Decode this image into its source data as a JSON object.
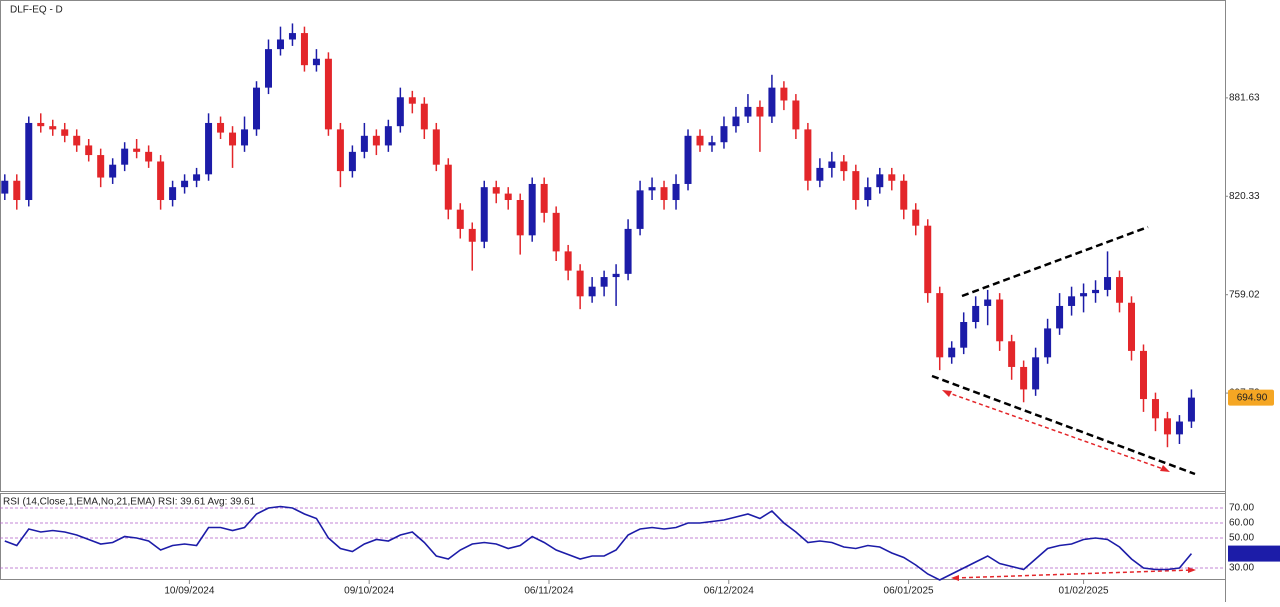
{
  "chart_data": [
    {
      "type": "candlestick",
      "title": "DLF-EQ - D",
      "up_color": "#1c1ca8",
      "down_color": "#e3262a",
      "ylim": [
        636.1,
        942.6
      ],
      "yticks": [
        881.63,
        820.33,
        759.02,
        697.72
      ],
      "xlim": [
        -0.4,
        101.8
      ],
      "xticks": [
        {
          "value": 15.4,
          "label": "10/09/2024"
        },
        {
          "value": 30.4,
          "label": "09/10/2024"
        },
        {
          "value": 45.4,
          "label": "06/11/2024"
        },
        {
          "value": 60.4,
          "label": "06/12/2024"
        },
        {
          "value": 75.4,
          "label": "06/01/2025"
        },
        {
          "value": 90,
          "label": "01/02/2025"
        }
      ],
      "last_price": {
        "value": 694.9,
        "label": "694.90"
      },
      "candles": [
        [
          822,
          834,
          818,
          830
        ],
        [
          830,
          834,
          812,
          818
        ],
        [
          818,
          870,
          814,
          866
        ],
        [
          866,
          872,
          860,
          864
        ],
        [
          864,
          868,
          858,
          862
        ],
        [
          862,
          866,
          854,
          858
        ],
        [
          858,
          862,
          848,
          852
        ],
        [
          852,
          856,
          842,
          846
        ],
        [
          846,
          850,
          826,
          832
        ],
        [
          832,
          844,
          828,
          840
        ],
        [
          840,
          854,
          836,
          850
        ],
        [
          850,
          856,
          844,
          848
        ],
        [
          848,
          852,
          838,
          842
        ],
        [
          842,
          846,
          812,
          818
        ],
        [
          818,
          830,
          814,
          826
        ],
        [
          826,
          834,
          822,
          830
        ],
        [
          830,
          838,
          826,
          834
        ],
        [
          834,
          872,
          830,
          866
        ],
        [
          866,
          870,
          856,
          860
        ],
        [
          860,
          864,
          838,
          852
        ],
        [
          852,
          870,
          848,
          862
        ],
        [
          862,
          892,
          858,
          888
        ],
        [
          888,
          918,
          884,
          912
        ],
        [
          912,
          926,
          908,
          918
        ],
        [
          918,
          928,
          914,
          922
        ],
        [
          922,
          926,
          898,
          902
        ],
        [
          902,
          912,
          898,
          906
        ],
        [
          906,
          910,
          858,
          862
        ],
        [
          862,
          866,
          826,
          836
        ],
        [
          836,
          852,
          832,
          848
        ],
        [
          848,
          866,
          844,
          858
        ],
        [
          858,
          862,
          846,
          852
        ],
        [
          852,
          868,
          848,
          864
        ],
        [
          864,
          888,
          860,
          882
        ],
        [
          882,
          886,
          872,
          878
        ],
        [
          878,
          882,
          856,
          862
        ],
        [
          862,
          866,
          836,
          840
        ],
        [
          840,
          844,
          806,
          812
        ],
        [
          812,
          816,
          794,
          800
        ],
        [
          800,
          804,
          774,
          792
        ],
        [
          792,
          830,
          788,
          826
        ],
        [
          826,
          830,
          816,
          822
        ],
        [
          822,
          826,
          812,
          818
        ],
        [
          818,
          822,
          784,
          796
        ],
        [
          796,
          832,
          792,
          828
        ],
        [
          828,
          832,
          804,
          810
        ],
        [
          810,
          814,
          780,
          786
        ],
        [
          786,
          790,
          768,
          774
        ],
        [
          774,
          778,
          750,
          758
        ],
        [
          758,
          770,
          754,
          764
        ],
        [
          764,
          774,
          758,
          770
        ],
        [
          770,
          778,
          752,
          772
        ],
        [
          772,
          806,
          768,
          800
        ],
        [
          800,
          830,
          796,
          824
        ],
        [
          824,
          832,
          818,
          826
        ],
        [
          826,
          830,
          812,
          818
        ],
        [
          818,
          834,
          812,
          828
        ],
        [
          828,
          862,
          824,
          858
        ],
        [
          858,
          862,
          848,
          852
        ],
        [
          852,
          858,
          848,
          854
        ],
        [
          854,
          870,
          850,
          864
        ],
        [
          864,
          876,
          860,
          870
        ],
        [
          870,
          884,
          866,
          876
        ],
        [
          876,
          880,
          848,
          870
        ],
        [
          870,
          896,
          866,
          888
        ],
        [
          888,
          892,
          874,
          880
        ],
        [
          880,
          884,
          856,
          862
        ],
        [
          862,
          866,
          824,
          830
        ],
        [
          830,
          844,
          826,
          838
        ],
        [
          838,
          848,
          832,
          842
        ],
        [
          842,
          846,
          830,
          836
        ],
        [
          836,
          840,
          812,
          818
        ],
        [
          818,
          832,
          814,
          826
        ],
        [
          826,
          838,
          822,
          834
        ],
        [
          834,
          838,
          824,
          830
        ],
        [
          830,
          834,
          806,
          812
        ],
        [
          812,
          816,
          796,
          802
        ],
        [
          802,
          806,
          754,
          760
        ],
        [
          760,
          764,
          712,
          720
        ],
        [
          720,
          730,
          716,
          726
        ],
        [
          726,
          748,
          722,
          742
        ],
        [
          742,
          758,
          738,
          752
        ],
        [
          752,
          762,
          740,
          756
        ],
        [
          756,
          760,
          724,
          730
        ],
        [
          730,
          734,
          706,
          714
        ],
        [
          714,
          718,
          692,
          700
        ],
        [
          700,
          726,
          696,
          720
        ],
        [
          720,
          744,
          716,
          738
        ],
        [
          738,
          760,
          734,
          752
        ],
        [
          752,
          764,
          746,
          758
        ],
        [
          758,
          766,
          748,
          760
        ],
        [
          760,
          768,
          754,
          762
        ],
        [
          762,
          786,
          758,
          770
        ],
        [
          770,
          774,
          748,
          754
        ],
        [
          754,
          758,
          718,
          724
        ],
        [
          724,
          728,
          686,
          694
        ],
        [
          694,
          698,
          674,
          682
        ],
        [
          682,
          686,
          664,
          672
        ],
        [
          672,
          684,
          666,
          680
        ],
        [
          680,
          700,
          676,
          694.9
        ]
      ]
    },
    {
      "type": "line",
      "title": "RSI (14,Close,1,EMA,No,21,EMA) RSI: 39.61 Avg: 39.61",
      "color": "#1c1ca8",
      "ylim": [
        22,
        80
      ],
      "yticks": [
        {
          "value": 70,
          "label": "70.00"
        },
        {
          "value": 60,
          "label": "60.00"
        },
        {
          "value": 50,
          "label": "50.00"
        },
        {
          "value": 30,
          "label": "30.00"
        }
      ],
      "values": [
        48,
        45,
        56,
        54,
        55,
        54,
        52,
        49,
        46,
        47,
        51,
        50,
        48,
        42,
        45,
        46,
        45,
        57,
        57,
        55,
        57,
        66,
        70,
        71,
        70,
        66,
        63,
        50,
        43,
        41,
        46,
        49,
        48,
        52,
        54,
        47,
        38,
        36,
        42,
        46,
        47,
        46,
        43,
        45,
        51,
        47,
        42,
        39,
        36,
        38,
        38,
        42,
        52,
        56,
        57,
        56,
        57,
        60,
        60,
        61,
        62,
        64,
        66,
        63,
        68,
        60,
        54,
        47,
        48,
        47,
        44,
        43,
        45,
        44,
        40,
        37,
        32,
        26,
        22,
        26,
        30,
        34,
        38,
        33,
        31,
        29,
        36,
        43,
        45,
        46,
        49,
        50,
        49,
        44,
        36,
        30,
        29,
        29,
        30,
        39.61
      ]
    }
  ]
}
